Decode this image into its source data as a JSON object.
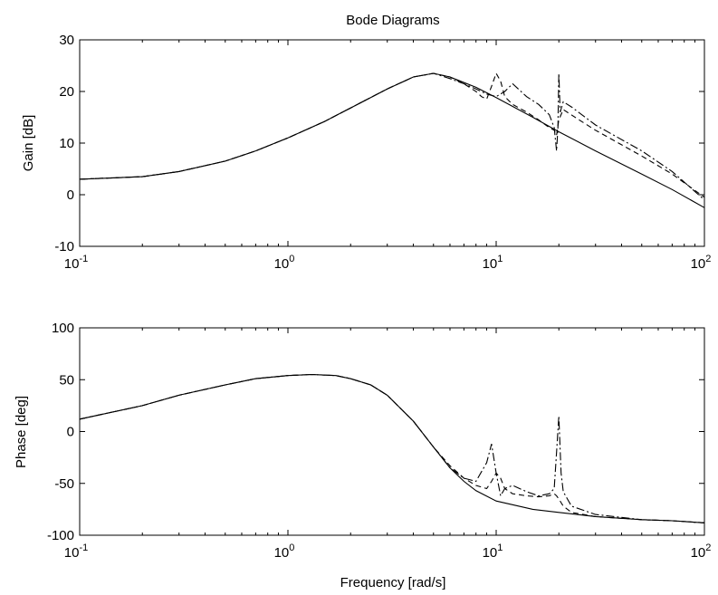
{
  "figure": {
    "title": "Bode Diagrams"
  },
  "chart_data": [
    {
      "type": "line",
      "ylabel": "Gain [dB]",
      "xlabel": "",
      "xscale": "log",
      "xlim": [
        0.1,
        100
      ],
      "ylim": [
        -10,
        30
      ],
      "yticks": [
        -10,
        0,
        10,
        20,
        30
      ],
      "ytick_labels": [
        "-10",
        "0",
        "10",
        "20",
        "30"
      ],
      "xtick_labels": [
        {
          "base": "10",
          "exp": "-1"
        },
        {
          "base": "10",
          "exp": "0"
        },
        {
          "base": "10",
          "exp": "1"
        },
        {
          "base": "10",
          "exp": "2"
        }
      ],
      "grid": false,
      "series": [
        {
          "style": "solid",
          "x": [
            0.1,
            0.2,
            0.3,
            0.5,
            0.7,
            1,
            1.5,
            2,
            3,
            4,
            5,
            6,
            8,
            10,
            15,
            20,
            30,
            50,
            70,
            100
          ],
          "y": [
            3.0,
            3.5,
            4.5,
            6.5,
            8.5,
            11.0,
            14.2,
            16.8,
            20.5,
            22.8,
            23.5,
            22.8,
            20.8,
            18.8,
            15.0,
            12.2,
            8.5,
            4.0,
            1.0,
            -2.5
          ]
        },
        {
          "style": "dashdot",
          "x": [
            0.1,
            0.2,
            0.3,
            0.5,
            0.7,
            1,
            1.5,
            2,
            3,
            4,
            5,
            6,
            7,
            8,
            9,
            10,
            11,
            12,
            14,
            16,
            18,
            19,
            19.5,
            19.8,
            20,
            20.3,
            21,
            23,
            30,
            50,
            70,
            100
          ],
          "y": [
            3.0,
            3.5,
            4.5,
            6.5,
            8.5,
            11.0,
            14.2,
            16.8,
            20.5,
            22.8,
            23.5,
            22.5,
            21.5,
            20.5,
            19.5,
            19.0,
            20.0,
            21.5,
            19.0,
            17.5,
            15.5,
            13.0,
            8.5,
            13.0,
            23.5,
            16.0,
            18.0,
            17.0,
            13.5,
            8.5,
            4.5,
            -1.0
          ]
        },
        {
          "style": "dashed",
          "x": [
            0.1,
            0.2,
            0.3,
            0.5,
            0.7,
            1,
            1.5,
            2,
            3,
            4,
            5,
            6,
            7,
            8,
            8.5,
            9,
            9.5,
            10,
            10.5,
            11,
            12,
            14,
            16,
            18,
            19,
            19.5,
            20,
            21,
            25,
            30,
            50,
            70,
            100
          ],
          "y": [
            3.0,
            3.5,
            4.5,
            6.5,
            8.5,
            11.0,
            14.2,
            16.8,
            20.5,
            22.8,
            23.5,
            22.8,
            21.5,
            20.0,
            19.0,
            18.5,
            21.0,
            23.5,
            22.0,
            19.0,
            17.5,
            16.0,
            14.5,
            13.0,
            12.5,
            11.5,
            14.5,
            16.5,
            14.5,
            12.5,
            7.5,
            4.0,
            -0.5
          ]
        }
      ]
    },
    {
      "type": "line",
      "ylabel": "Phase [deg]",
      "xlabel": "Frequency [rad/s]",
      "xscale": "log",
      "xlim": [
        0.1,
        100
      ],
      "ylim": [
        -100,
        100
      ],
      "yticks": [
        -100,
        -50,
        0,
        50,
        100
      ],
      "ytick_labels": [
        "-100",
        "-50",
        "0",
        "50",
        "100"
      ],
      "xtick_labels": [
        {
          "base": "10",
          "exp": "-1"
        },
        {
          "base": "10",
          "exp": "0"
        },
        {
          "base": "10",
          "exp": "1"
        },
        {
          "base": "10",
          "exp": "2"
        }
      ],
      "grid": false,
      "series": [
        {
          "style": "solid",
          "x": [
            0.1,
            0.2,
            0.3,
            0.5,
            0.7,
            1,
            1.3,
            1.7,
            2,
            2.5,
            3,
            4,
            5,
            6,
            7,
            8,
            10,
            15,
            20,
            30,
            50,
            70,
            100
          ],
          "y": [
            12,
            25,
            35,
            45,
            51,
            54,
            55,
            54,
            51,
            45,
            35,
            10,
            -15,
            -35,
            -48,
            -57,
            -67,
            -75,
            -78,
            -82,
            -85,
            -86,
            -88
          ]
        },
        {
          "style": "dashdot",
          "x": [
            0.1,
            0.2,
            0.3,
            0.5,
            0.7,
            1,
            1.3,
            1.7,
            2,
            2.5,
            3,
            4,
            5,
            6,
            7,
            8,
            9,
            9.5,
            10,
            10.5,
            11,
            12,
            14,
            16,
            18,
            19,
            19.5,
            20,
            20.5,
            21,
            23,
            30,
            50,
            70,
            100
          ],
          "y": [
            12,
            25,
            35,
            45,
            51,
            54,
            55,
            54,
            51,
            45,
            35,
            10,
            -15,
            -35,
            -45,
            -48,
            -30,
            -12,
            -40,
            -62,
            -55,
            -52,
            -58,
            -62,
            -60,
            -55,
            -20,
            15,
            -40,
            -58,
            -72,
            -80,
            -85,
            -86,
            -88
          ]
        },
        {
          "style": "dashed",
          "x": [
            0.1,
            0.2,
            0.3,
            0.5,
            0.7,
            1,
            1.3,
            1.7,
            2,
            2.5,
            3,
            4,
            5,
            6,
            7,
            8,
            9,
            9.5,
            10,
            10.5,
            11,
            12,
            14,
            16,
            18,
            19,
            19.5,
            20,
            21,
            23,
            30,
            50,
            70,
            100
          ],
          "y": [
            12,
            25,
            35,
            45,
            51,
            54,
            55,
            54,
            51,
            45,
            35,
            10,
            -15,
            -33,
            -45,
            -52,
            -55,
            -48,
            -40,
            -45,
            -55,
            -60,
            -62,
            -63,
            -62,
            -60,
            -62,
            -65,
            -72,
            -78,
            -82,
            -85,
            -86,
            -88
          ]
        }
      ]
    }
  ]
}
